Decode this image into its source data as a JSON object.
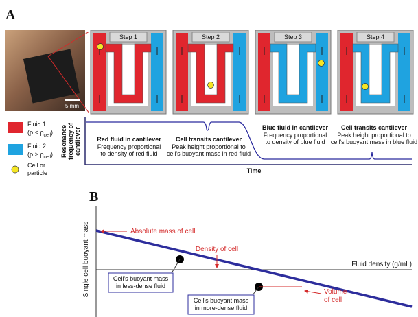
{
  "panel_a": {
    "letter": "A",
    "steps": [
      "Step 1",
      "Step 2",
      "Step 3",
      "Step 4"
    ],
    "scale_bar": "5 mm",
    "legend": [
      {
        "label": "Fluid 1",
        "relation": "(ρ < ρ",
        "subscript": "cell",
        "close": ")"
      },
      {
        "label": "Fluid 2",
        "relation": "(ρ > ρ",
        "subscript": "cell",
        "close": ")"
      }
    ],
    "cell_legend": [
      "Cell or",
      "particle"
    ],
    "y_axis_label": [
      "Resonance",
      "frequency of",
      "cantilever"
    ],
    "x_axis_label": "Time",
    "annotations": [
      {
        "heading": "Red fluid in cantilever",
        "lines": [
          "Frequency proportional",
          "to density of red fluid"
        ]
      },
      {
        "heading": "Cell transits cantilever",
        "lines": [
          "Peak height proportional to",
          "cell's buoyant mass in red fluid"
        ]
      },
      {
        "heading": "Blue fluid in cantilever",
        "lines": [
          "Frequency proportional",
          "to density of blue fluid"
        ]
      },
      {
        "heading": "Cell transits cantilever",
        "lines": [
          "Peak height proportional to",
          "cell's buoyant mass in blue fluid"
        ]
      }
    ]
  },
  "panel_b": {
    "letter": "B",
    "y_axis_label": "Single cell buoyant mass",
    "x_axis_label": "Fluid density (g/mL)",
    "absolute_mass": "Absolute mass of cell",
    "density": "Density of cell",
    "volume": [
      "Volume",
      "of cell"
    ],
    "less_dense": [
      "Cell's buoyant mass",
      "in less-dense fluid"
    ],
    "more_dense": [
      "Cell's buoyant mass",
      "in more-dense fluid"
    ]
  }
}
